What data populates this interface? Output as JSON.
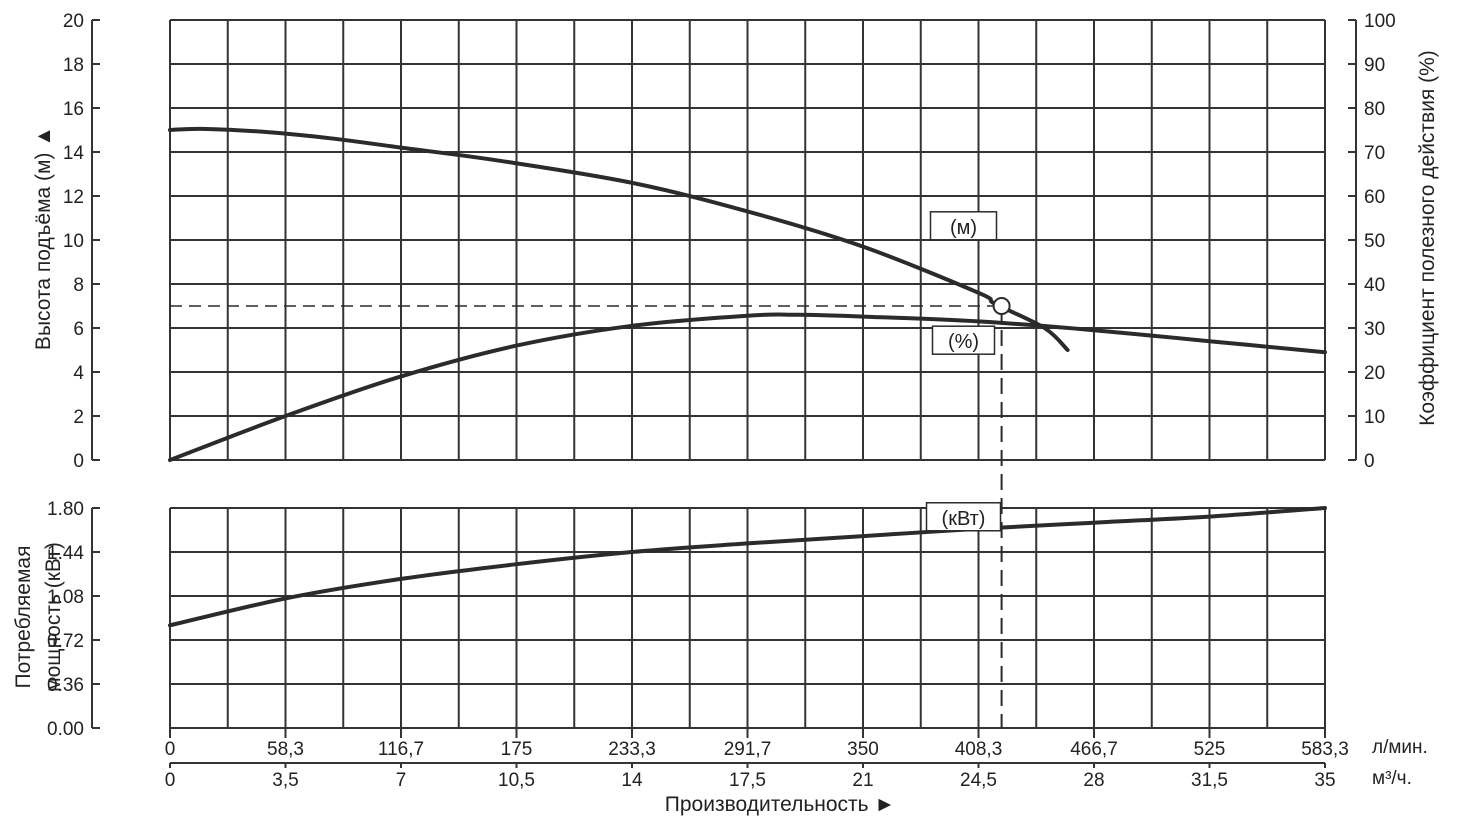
{
  "chart_data": {
    "type": "line",
    "x_axis": {
      "label": "Производительность ►",
      "ticks_lpm": [
        "0",
        "58,3",
        "116,7",
        "175",
        "233,3",
        "291,7",
        "350",
        "408,3",
        "466,7",
        "525",
        "583,3"
      ],
      "unit_lpm": "л/мин.",
      "ticks_m3h": [
        "0",
        "3,5",
        "7",
        "10,5",
        "14",
        "17,5",
        "21",
        "24,5",
        "28",
        "31,5",
        "35"
      ],
      "unit_m3h": "м³/ч.",
      "range_m3h": [
        0,
        35
      ]
    },
    "head_axis": {
      "label": "Высота подъёма (м) ▲",
      "ticks": [
        "0",
        "2",
        "4",
        "6",
        "8",
        "10",
        "12",
        "14",
        "16",
        "18",
        "20"
      ],
      "range": [
        0,
        20
      ]
    },
    "efficiency_axis": {
      "label": "Коэффициент полезного действия (%)",
      "ticks": [
        "0",
        "10",
        "20",
        "30",
        "40",
        "50",
        "60",
        "70",
        "80",
        "90",
        "100"
      ],
      "range": [
        0,
        100
      ]
    },
    "power_axis": {
      "label_line1": "Потребляемая",
      "label_line2": "мощность (кВт)",
      "ticks": [
        "0.00",
        "0.36",
        "0.72",
        "1.08",
        "1.44",
        "1.80"
      ],
      "range": [
        0,
        1.8
      ]
    },
    "series": [
      {
        "name": "(м)",
        "axis": "head",
        "x": [
          0,
          1,
          3,
          5,
          7,
          10,
          14,
          17.5,
          21,
          24.5,
          25,
          26.5,
          27.2
        ],
        "y": [
          15,
          15.05,
          14.9,
          14.6,
          14.2,
          13.6,
          12.6,
          11.3,
          9.7,
          7.6,
          7.1,
          6.0,
          5.0
        ]
      },
      {
        "name": "(%)",
        "axis": "efficiency",
        "x": [
          0,
          3.5,
          7,
          10.5,
          14,
          17.5,
          19,
          21,
          24.5,
          28,
          31.5,
          35
        ],
        "y": [
          0,
          10,
          19,
          26,
          30.5,
          32.8,
          33,
          32.6,
          31.5,
          29.5,
          27,
          24.5
        ]
      },
      {
        "name": "(кВт)",
        "axis": "power",
        "x": [
          0,
          3.5,
          7,
          10.5,
          14,
          17.5,
          21,
          24.5,
          28,
          31.5,
          35
        ],
        "y": [
          0.84,
          1.06,
          1.22,
          1.34,
          1.44,
          1.51,
          1.57,
          1.63,
          1.68,
          1.73,
          1.8
        ]
      }
    ],
    "label_anchors": {
      "(м)": {
        "x": 22.5,
        "y": 10.6
      },
      "(%)": {
        "x": 22.5,
        "y": 27
      },
      "(кВт)": {
        "x": 22.5,
        "y": 1.72
      }
    },
    "operating_point": {
      "q_m3h": 25.2,
      "head_m": 7.0
    },
    "grid": true,
    "colors": {
      "curve": "#2b2b2b",
      "grid": "#333333",
      "text": "#222222"
    }
  }
}
